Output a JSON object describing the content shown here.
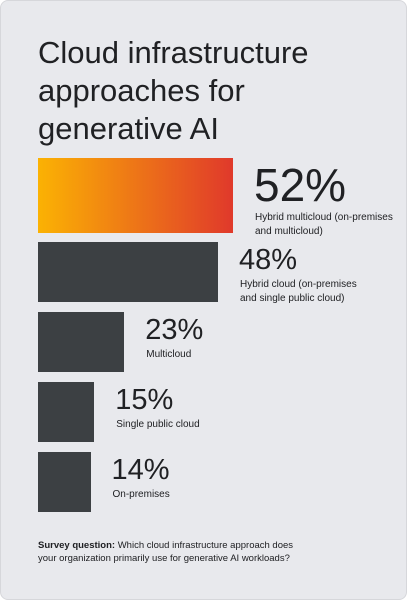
{
  "chart_data": {
    "type": "bar",
    "title": "Cloud infrastructure approaches for generative AI",
    "categories": [
      "Hybrid multicloud (on-premises and multicloud)",
      "Hybrid cloud (on-premises and single public cloud)",
      "Multicloud",
      "Single public cloud",
      "On-premises"
    ],
    "values": [
      52,
      48,
      23,
      15,
      14
    ],
    "value_labels": [
      "52%",
      "48%",
      "23%",
      "15%",
      "14%"
    ],
    "colors": [
      [
        "#fbb203",
        "#e0392b"
      ],
      "#3c4043",
      "#3c4043",
      "#3c4043",
      "#3c4043"
    ],
    "note_label": "Survey question:",
    "note": "Which cloud infrastructure approach does your organization primarily use for generative AI workloads?"
  }
}
